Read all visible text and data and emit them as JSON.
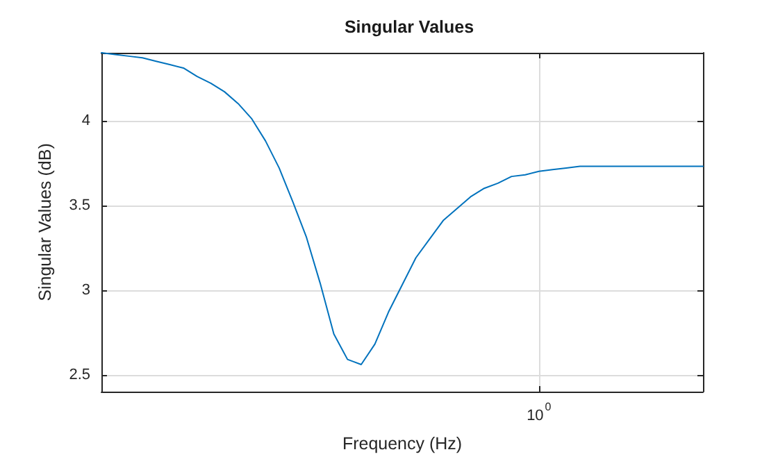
{
  "chart_data": {
    "type": "line",
    "title": "Singular Values",
    "xlabel": "Frequency (Hz)",
    "ylabel": "Singular Values (dB)",
    "categories": [
      null,
      null,
      null,
      null,
      null,
      null,
      null,
      null,
      null,
      null,
      null,
      null,
      null,
      null,
      null,
      null,
      null,
      null,
      null,
      null,
      null,
      null,
      null,
      null,
      null,
      null,
      null,
      null,
      null,
      null,
      null,
      null,
      "10$^{0}$",
      null,
      null,
      null,
      null,
      null,
      null,
      null,
      null,
      null,
      null,
      null,
      null
    ],
    "values": [
      4.4,
      4.39,
      4.38,
      4.37,
      4.35,
      4.33,
      4.31,
      4.26,
      4.22,
      4.17,
      4.1,
      4.01,
      3.88,
      3.72,
      3.52,
      3.31,
      3.04,
      2.74,
      2.59,
      2.56,
      2.68,
      2.87,
      3.03,
      3.19,
      3.3,
      3.41,
      3.48,
      3.55,
      3.6,
      3.63,
      3.67,
      3.68,
      3.7,
      3.71,
      3.72,
      3.73,
      3.73,
      3.73,
      3.73,
      3.73,
      3.73,
      3.73,
      3.73,
      3.73,
      3.73
    ],
    "color": "#0072bd",
    "ylim": [
      2.4,
      4.4
    ],
    "yticks": [
      2.5,
      3,
      3.5,
      4
    ],
    "grid": true,
    "marker": "none",
    "line_style": "solid"
  }
}
